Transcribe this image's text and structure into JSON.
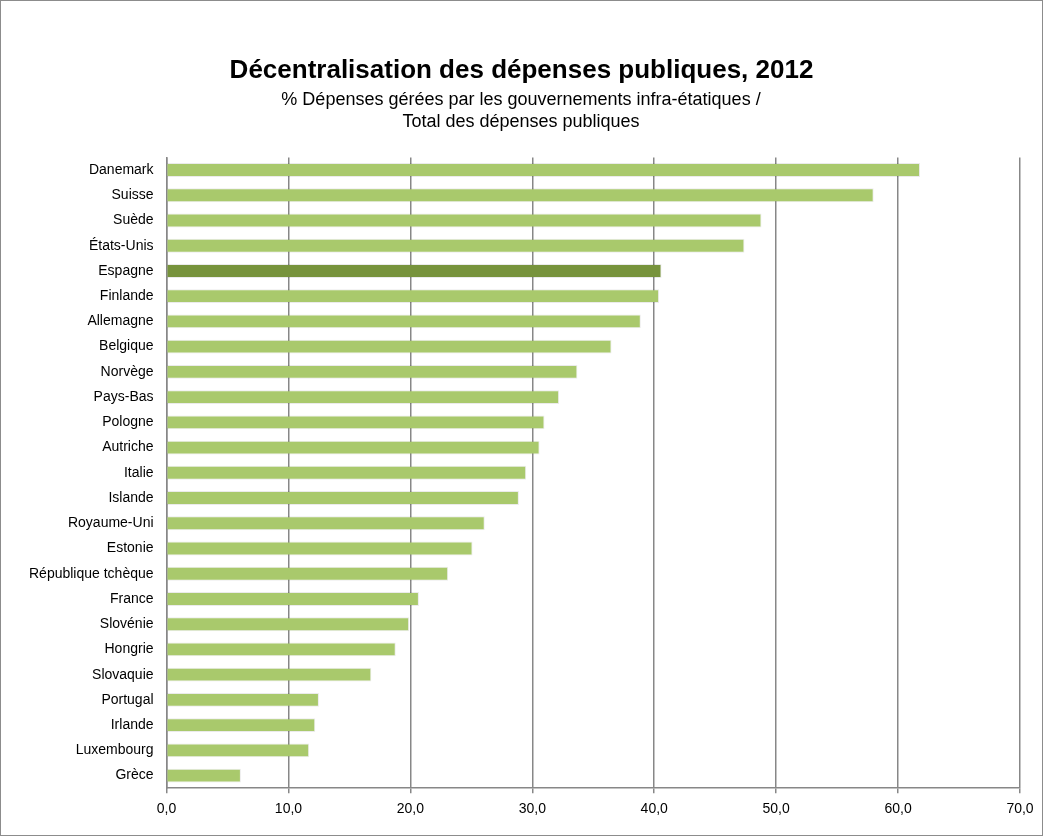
{
  "chart_data": {
    "type": "bar",
    "orientation": "horizontal",
    "title": "Décentralisation des dépenses publiques, 2012",
    "subtitle": "% Dépenses gérées par les gouvernements  infra-étatiques / Total des dépenses publiques",
    "categories": [
      "Danemark",
      "Suisse",
      "Suède",
      "États-Unis",
      "Espagne",
      "Finlande",
      "Allemagne",
      "Belgique",
      "Norvège",
      "Pays-Bas",
      "Pologne",
      "Autriche",
      "Italie",
      "Islande",
      "Royaume-Uni",
      "Estonie",
      "République tchèque",
      "France",
      "Slovénie",
      "Hongrie",
      "Slovaquie",
      "Portugal",
      "Irlande",
      "Luxembourg",
      "Grèce"
    ],
    "values": [
      61.8,
      58.0,
      48.8,
      47.4,
      40.6,
      40.4,
      38.9,
      36.5,
      33.7,
      32.2,
      31.0,
      30.6,
      29.5,
      28.9,
      26.1,
      25.1,
      23.1,
      20.7,
      19.9,
      18.8,
      16.8,
      12.5,
      12.2,
      11.7,
      6.1
    ],
    "colors": [
      "#a9c96c",
      "#a9c96c",
      "#a9c96c",
      "#a9c96c",
      "#77933c",
      "#a9c96c",
      "#a9c96c",
      "#a9c96c",
      "#a9c96c",
      "#a9c96c",
      "#a9c96c",
      "#a9c96c",
      "#a9c96c",
      "#a9c96c",
      "#a9c96c",
      "#a9c96c",
      "#a9c96c",
      "#a9c96c",
      "#a9c96c",
      "#a9c96c",
      "#a9c96c",
      "#a9c96c",
      "#a9c96c",
      "#a9c96c",
      "#a9c96c"
    ],
    "xlim": [
      0,
      70
    ],
    "xticks": [
      {
        "value": 0,
        "label": "0,0"
      },
      {
        "value": 10,
        "label": "10,0"
      },
      {
        "value": 20,
        "label": "20,0"
      },
      {
        "value": 30,
        "label": "30,0"
      },
      {
        "value": 40,
        "label": "40,0"
      },
      {
        "value": 50,
        "label": "50,0"
      },
      {
        "value": 60,
        "label": "60,0"
      },
      {
        "value": 70,
        "label": "70,0"
      }
    ],
    "grid": "x",
    "legend": false
  }
}
